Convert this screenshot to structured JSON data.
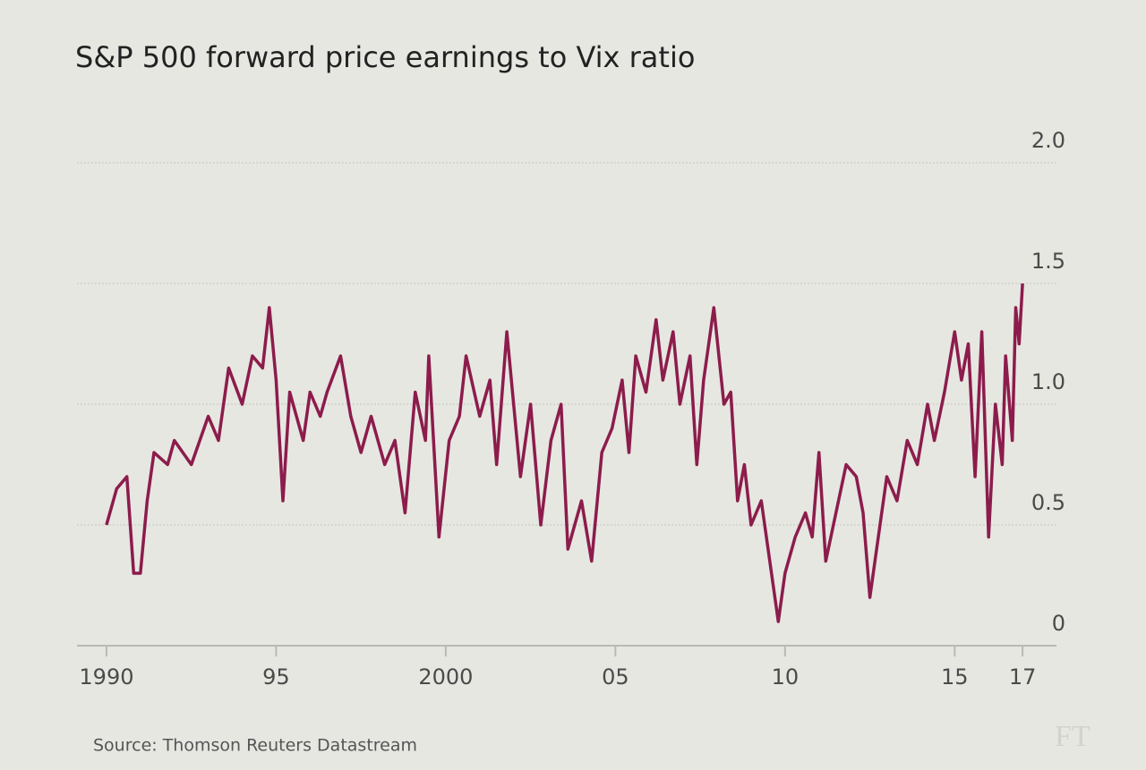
{
  "chart_data": {
    "type": "line",
    "title": "S&P 500 forward price earnings to Vix ratio",
    "source": "Source: Thomson Reuters Datastream",
    "logo": "FT",
    "xlim": [
      1989.5,
      2018
    ],
    "ylim": [
      0,
      2
    ],
    "xticks": [
      1990,
      {
        "value": 1995,
        "label": "95"
      },
      2000,
      {
        "value": 2005,
        "label": "05"
      },
      {
        "value": 2010,
        "label": "10"
      },
      {
        "value": 2015,
        "label": "15"
      },
      {
        "value": 2017,
        "label": "17"
      }
    ],
    "yticks": [
      0,
      0.5,
      {
        "value": 1,
        "label": "1.0"
      },
      1.5,
      {
        "value": 2,
        "label": "2.0"
      }
    ],
    "grid": true,
    "series": [
      {
        "name": "S&P 500 forward P/E to Vix ratio",
        "color": "#8c1c4c",
        "x": [
          1990.0,
          1990.3,
          1990.6,
          1990.8,
          1991.0,
          1991.2,
          1991.4,
          1991.8,
          1992.0,
          1992.5,
          1993.0,
          1993.3,
          1993.6,
          1994.0,
          1994.3,
          1994.6,
          1994.8,
          1995.0,
          1995.2,
          1995.4,
          1995.8,
          1996.0,
          1996.3,
          1996.5,
          1996.9,
          1997.2,
          1997.5,
          1997.8,
          1998.2,
          1998.5,
          1998.8,
          1999.1,
          1999.4,
          1999.5,
          1999.8,
          2000.1,
          2000.4,
          2000.6,
          2001.0,
          2001.3,
          2001.5,
          2001.8,
          2002.2,
          2002.5,
          2002.8,
          2003.1,
          2003.4,
          2003.6,
          2004.0,
          2004.3,
          2004.6,
          2004.9,
          2005.2,
          2005.4,
          2005.6,
          2005.9,
          2006.2,
          2006.4,
          2006.7,
          2006.9,
          2007.2,
          2007.4,
          2007.6,
          2007.9,
          2008.2,
          2008.4,
          2008.6,
          2008.8,
          2009.0,
          2009.3,
          2009.6,
          2009.8,
          2010.0,
          2010.3,
          2010.6,
          2010.8,
          2011.0,
          2011.2,
          2011.5,
          2011.8,
          2012.1,
          2012.3,
          2012.5,
          2012.8,
          2013.0,
          2013.3,
          2013.6,
          2013.9,
          2014.2,
          2014.4,
          2014.7,
          2015.0,
          2015.2,
          2015.4,
          2015.6,
          2015.8,
          2016.0,
          2016.2,
          2016.4,
          2016.5,
          2016.7,
          2016.8,
          2016.9,
          2017.0
        ],
        "values": [
          0.5,
          0.65,
          0.7,
          0.3,
          0.3,
          0.6,
          0.8,
          0.75,
          0.85,
          0.75,
          0.95,
          0.85,
          1.15,
          1.0,
          1.2,
          1.15,
          1.4,
          1.1,
          0.6,
          1.05,
          0.85,
          1.05,
          0.95,
          1.05,
          1.2,
          0.95,
          0.8,
          0.95,
          0.75,
          0.85,
          0.55,
          1.05,
          0.85,
          1.2,
          0.45,
          0.85,
          0.95,
          1.2,
          0.95,
          1.1,
          0.75,
          1.3,
          0.7,
          1.0,
          0.5,
          0.85,
          1.0,
          0.4,
          0.6,
          0.35,
          0.8,
          0.9,
          1.1,
          0.8,
          1.2,
          1.05,
          1.35,
          1.1,
          1.3,
          1.0,
          1.2,
          0.75,
          1.1,
          1.4,
          1.0,
          1.05,
          0.6,
          0.75,
          0.5,
          0.6,
          0.3,
          0.1,
          0.3,
          0.45,
          0.55,
          0.45,
          0.8,
          0.35,
          0.55,
          0.75,
          0.7,
          0.55,
          0.2,
          0.5,
          0.7,
          0.6,
          0.85,
          0.75,
          1.0,
          0.85,
          1.05,
          1.3,
          1.1,
          1.25,
          0.7,
          1.3,
          0.45,
          1.0,
          0.75,
          1.2,
          0.85,
          1.4,
          1.25,
          1.5
        ]
      }
    ]
  }
}
